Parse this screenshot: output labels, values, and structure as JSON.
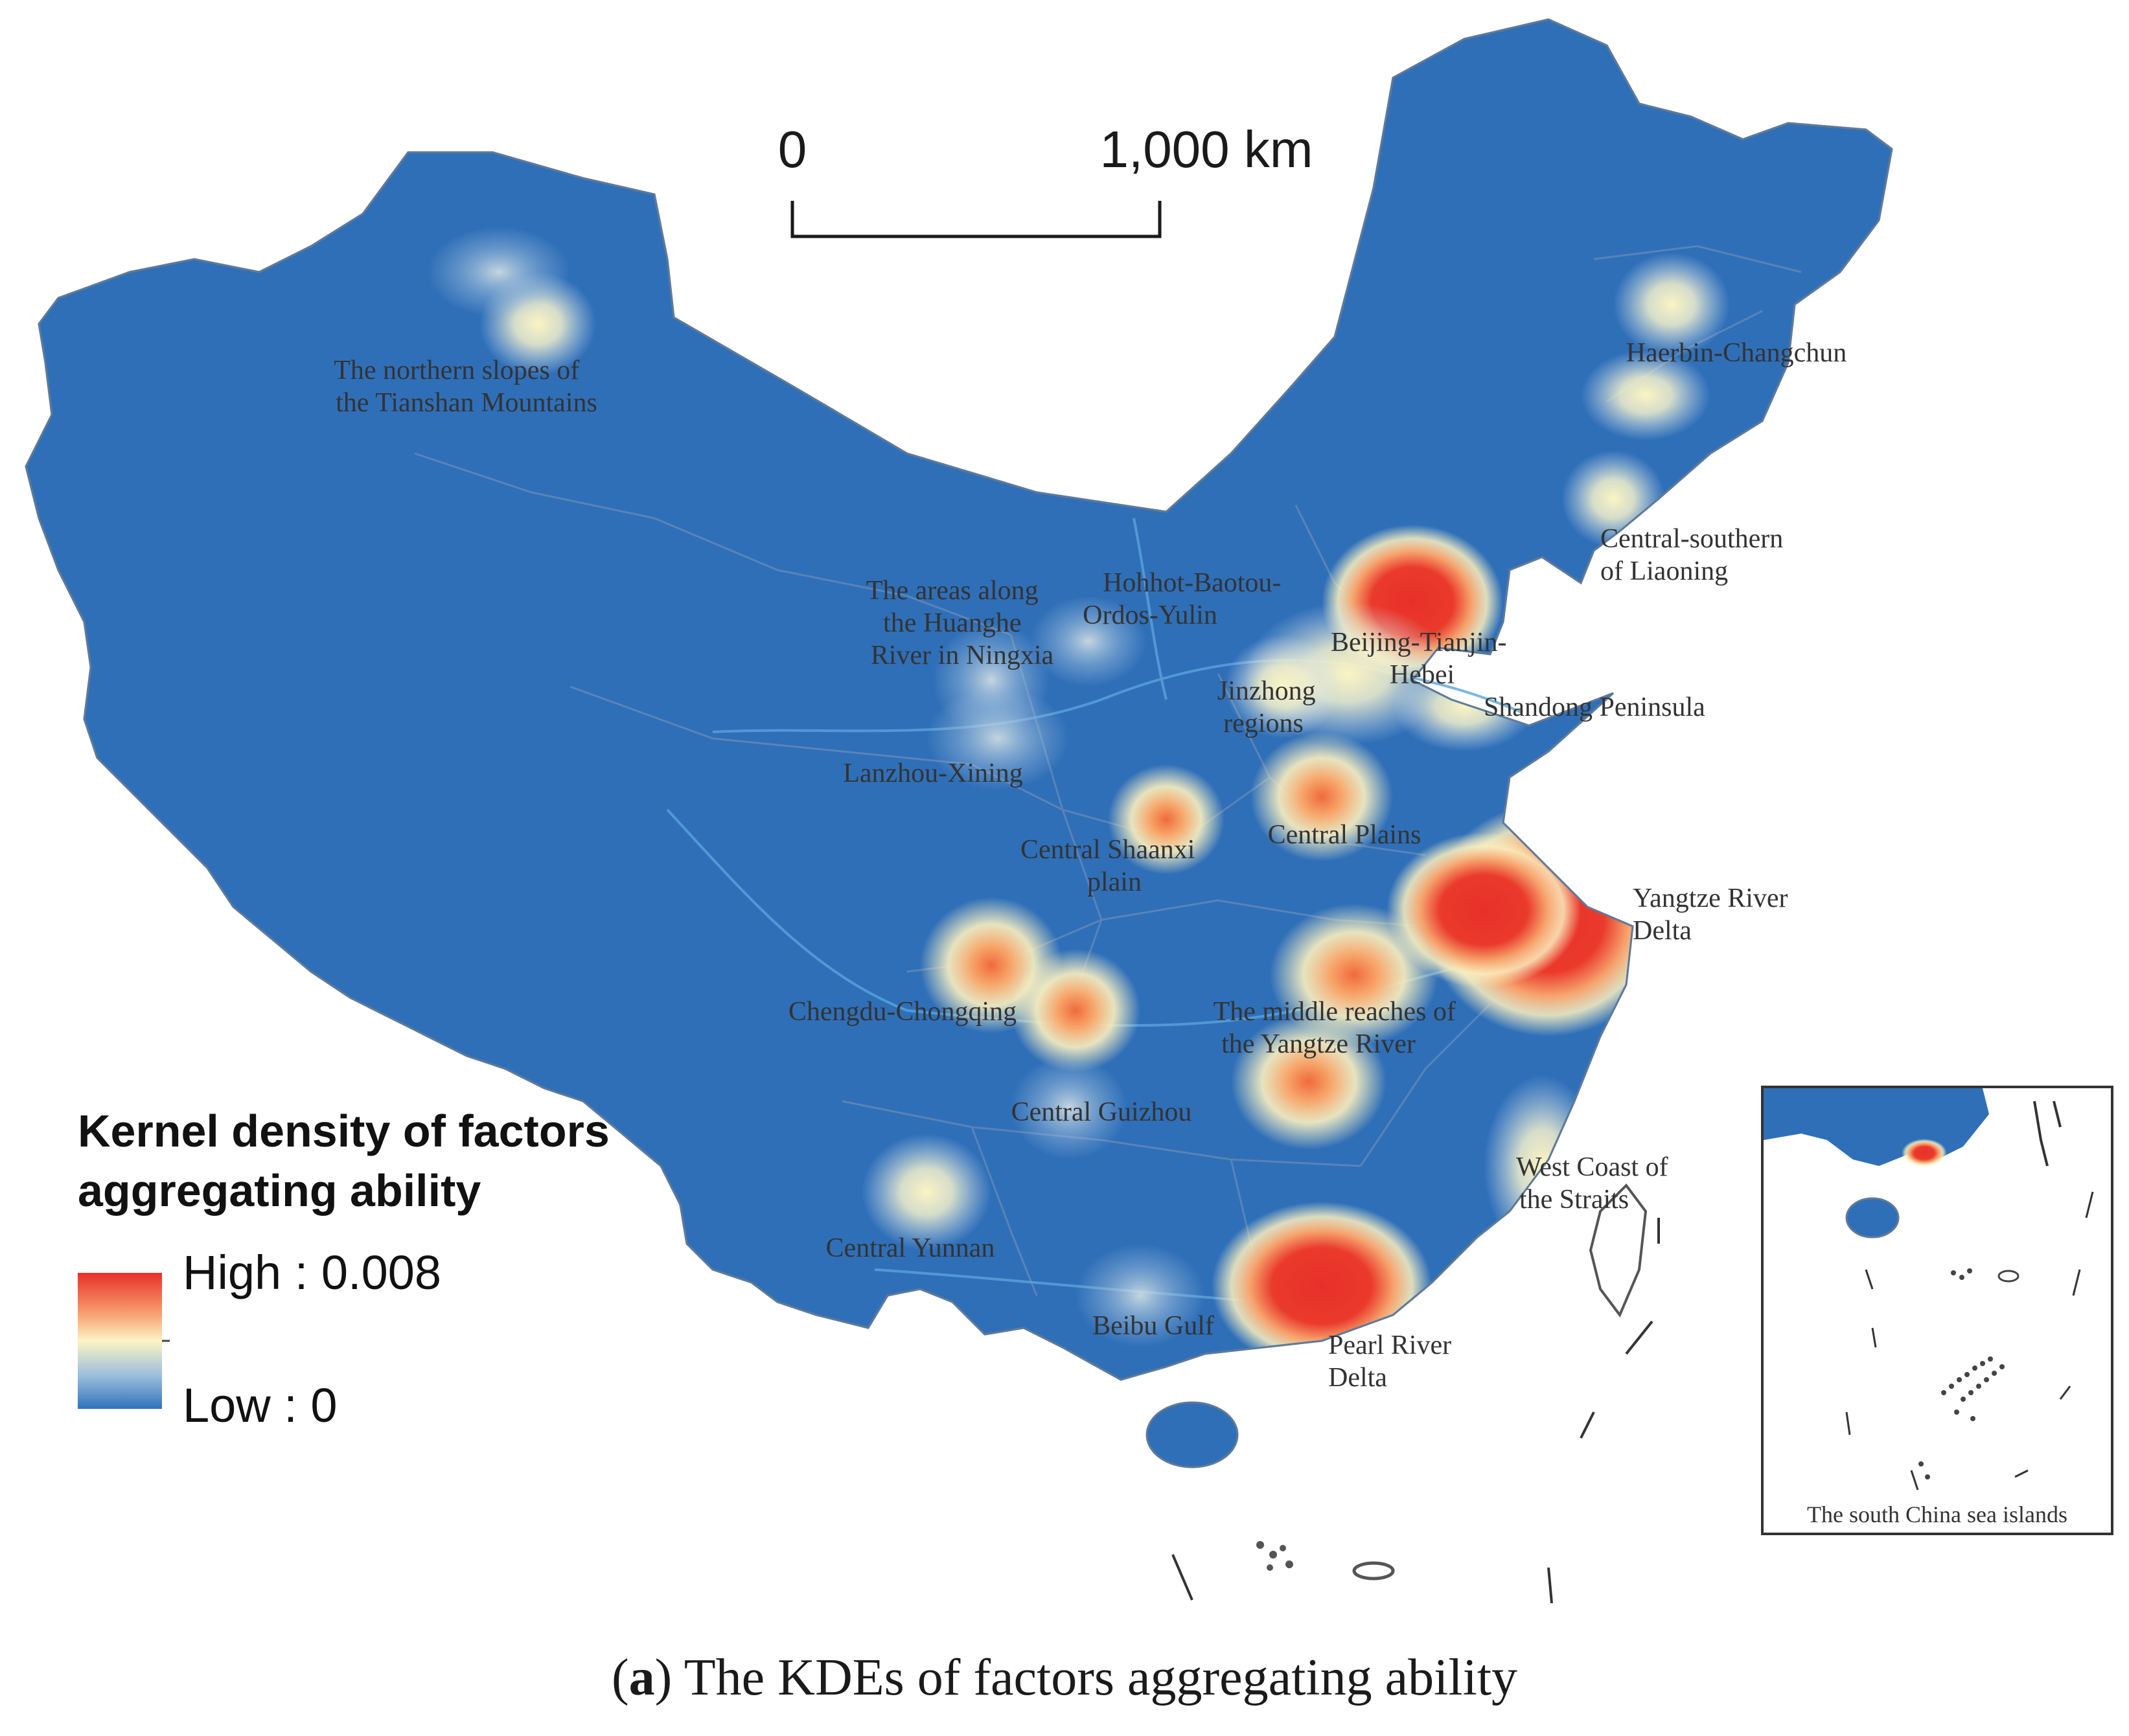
{
  "colors": {
    "low": "#2f73bb",
    "mid": "#fbf4c4",
    "high": "#e8302a",
    "land": "#2f6fb8",
    "border": "#9fb7d6",
    "river": "#5aa4dc"
  },
  "scale_bar": {
    "start_label": "0",
    "end_label": "1,000 km"
  },
  "legend": {
    "title_line1": "Kernel density of factors",
    "title_line2": "aggregating ability",
    "high_label": "High : 0.008",
    "low_label": "Low : 0"
  },
  "regions": [
    {
      "id": "tianshan",
      "lines": [
        "The northern slopes of",
        "the Tianshan Mountains"
      ],
      "density": 0.35
    },
    {
      "id": "harbin",
      "lines": [
        "Haerbin-Changchun"
      ],
      "density": 0.45
    },
    {
      "id": "liaoning",
      "lines": [
        "Central-southern",
        "of Liaoning"
      ],
      "density": 0.5
    },
    {
      "id": "ningxia",
      "lines": [
        "The areas along",
        "the Huanghe",
        "River in Ningxia"
      ],
      "density": 0.25
    },
    {
      "id": "hohhot",
      "lines": [
        "Hohhot-Baotou-",
        "Ordos-Yulin"
      ],
      "density": 0.3
    },
    {
      "id": "beijing",
      "lines": [
        "Beijing-Tianjin-",
        "Hebei"
      ],
      "density": 1.0
    },
    {
      "id": "jinzhong",
      "lines": [
        "Jinzhong",
        "regions"
      ],
      "density": 0.35
    },
    {
      "id": "shandong",
      "lines": [
        "Shandong Peninsula"
      ],
      "density": 0.4
    },
    {
      "id": "lanzhou",
      "lines": [
        "Lanzhou-Xining"
      ],
      "density": 0.3
    },
    {
      "id": "central_plains",
      "lines": [
        "Central Plains"
      ],
      "density": 0.6
    },
    {
      "id": "shaanxi",
      "lines": [
        "Central Shaanxi",
        "plain"
      ],
      "density": 0.6
    },
    {
      "id": "yangtze_delta",
      "lines": [
        "Yangtze River",
        "Delta"
      ],
      "density": 1.0
    },
    {
      "id": "chengdu",
      "lines": [
        "Chengdu-Chongqing"
      ],
      "density": 0.75
    },
    {
      "id": "middle_yangtze",
      "lines": [
        "The middle reaches of",
        "the Yangtze River"
      ],
      "density": 0.75
    },
    {
      "id": "guizhou",
      "lines": [
        "Central Guizhou"
      ],
      "density": 0.3
    },
    {
      "id": "west_coast",
      "lines": [
        "West Coast of",
        "the Straits"
      ],
      "density": 0.4
    },
    {
      "id": "yunnan",
      "lines": [
        "Central Yunnan"
      ],
      "density": 0.4
    },
    {
      "id": "beibu",
      "lines": [
        "Beibu Gulf"
      ],
      "density": 0.3
    },
    {
      "id": "pearl",
      "lines": [
        "Pearl River",
        "Delta"
      ],
      "density": 1.0
    }
  ],
  "inset": {
    "label": "The south China sea islands"
  },
  "caption": {
    "letter": "a",
    "text": ") The KDEs of factors aggregating ability"
  }
}
